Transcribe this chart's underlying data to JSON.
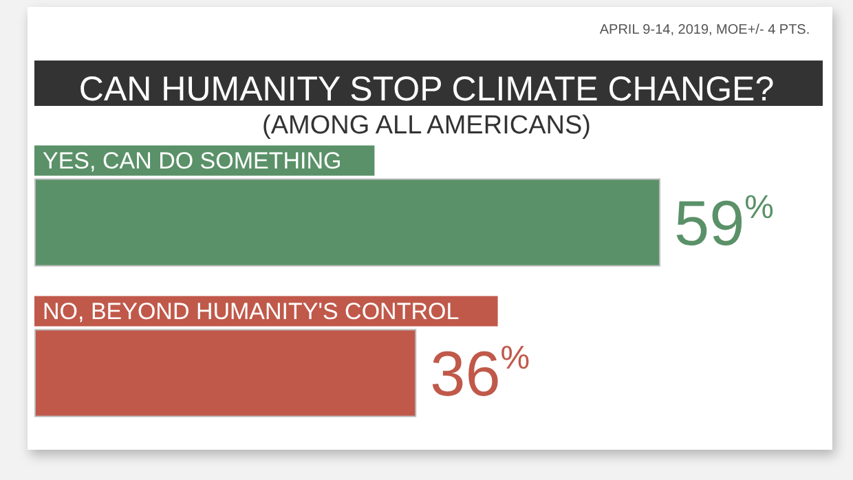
{
  "chart_data": {
    "type": "bar",
    "orientation": "horizontal",
    "title": "CAN HUMANITY STOP CLIMATE CHANGE?",
    "subtitle": "(AMONG ALL AMERICANS)",
    "annotations": [
      "APRIL 9-14, 2019, MOE+/- 4 PTS."
    ],
    "categories": [
      "YES, CAN DO SOMETHING",
      "NO, BEYOND HUMANITY'S CONTROL"
    ],
    "values": [
      59,
      36
    ],
    "colors": [
      "#5a9168",
      "#c0594a"
    ],
    "value_labels": [
      "59%",
      "36%"
    ]
  }
}
